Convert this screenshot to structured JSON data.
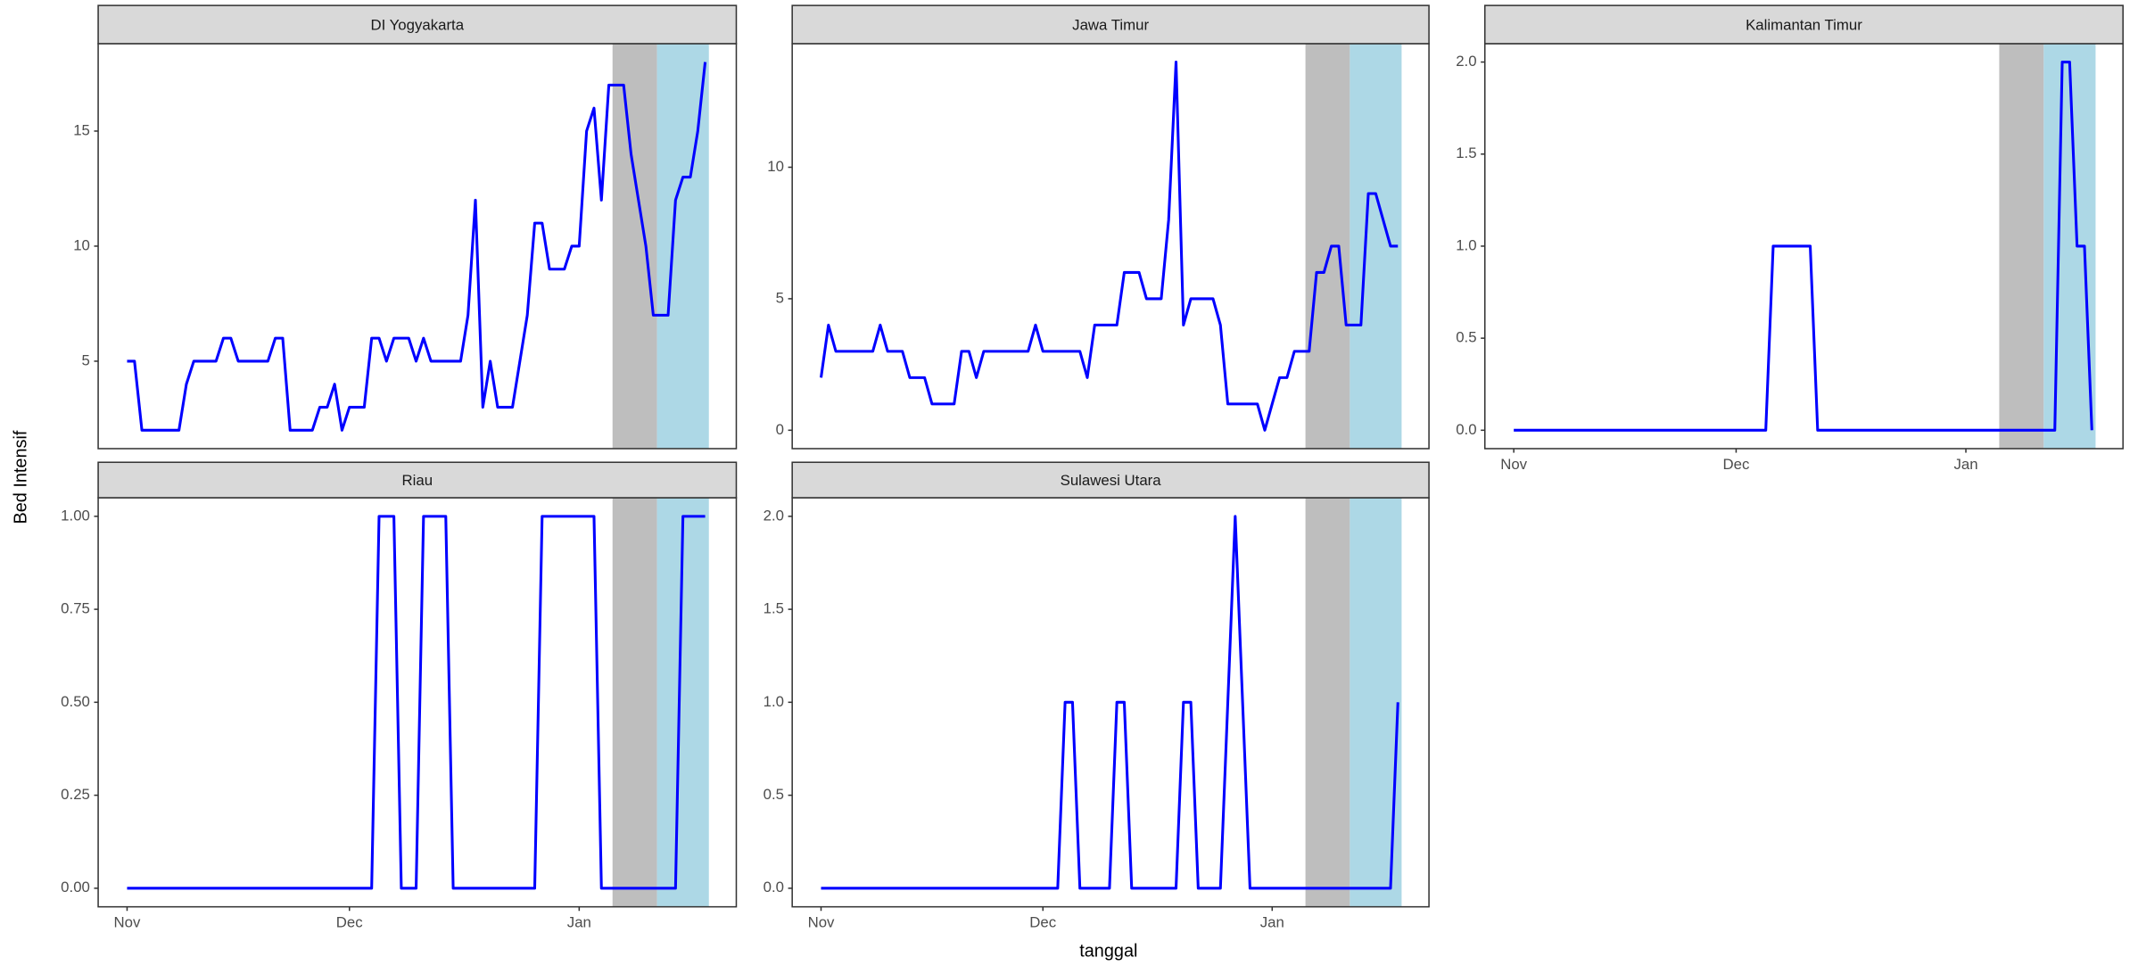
{
  "chart_data": {
    "type": "line",
    "xlabel": "tanggal",
    "ylabel": "Bed Intensif",
    "color": "#0000ff",
    "grid": false,
    "x": [
      0,
      1,
      2,
      3,
      4,
      5,
      6,
      7,
      8,
      9,
      10,
      11,
      12,
      13,
      14,
      15,
      16,
      17,
      18,
      19,
      20,
      21,
      22,
      23,
      24,
      25,
      26,
      27,
      28,
      29,
      30,
      31,
      32,
      33,
      34,
      35,
      36,
      37,
      38,
      39,
      40,
      41,
      42,
      43,
      44,
      45,
      46,
      47,
      48,
      49,
      50,
      51,
      52,
      53,
      54,
      55,
      56,
      57,
      58,
      59,
      60,
      61,
      62,
      63,
      64,
      65,
      66,
      67,
      68,
      69,
      70,
      71,
      72,
      73,
      74,
      75,
      76,
      77,
      78
    ],
    "xlim": [
      -3.9,
      82.2
    ],
    "xticks": [
      {
        "value": 0,
        "label": "Nov"
      },
      {
        "value": 30,
        "label": "Dec"
      },
      {
        "value": 61,
        "label": "Jan"
      }
    ],
    "bands": [
      {
        "xmin": 65.5,
        "xmax": 71.5,
        "color": "#bebebe"
      },
      {
        "xmin": 71.5,
        "xmax": 78.5,
        "color": "#add8e6"
      }
    ],
    "facets": [
      {
        "title": "DI Yogyakarta",
        "ylim": [
          1.2,
          18.8
        ],
        "yticks": [
          5,
          10,
          15
        ],
        "values": [
          5,
          5,
          2,
          2,
          2,
          2,
          2,
          2,
          4,
          5,
          5,
          5,
          5,
          6,
          6,
          5,
          5,
          5,
          5,
          5,
          6,
          6,
          2,
          2,
          2,
          2,
          3,
          3,
          4,
          2,
          3,
          3,
          3,
          6,
          6,
          5,
          6,
          6,
          6,
          5,
          6,
          5,
          5,
          5,
          5,
          5,
          7,
          12,
          3,
          5,
          3,
          3,
          3,
          5,
          7,
          11,
          11,
          9,
          9,
          9,
          10,
          10,
          15,
          16,
          12,
          17,
          17,
          17,
          14,
          12,
          10,
          7,
          7,
          7,
          12,
          13,
          13,
          15,
          18
        ]
      },
      {
        "title": "Jawa Timur",
        "ylim": [
          -0.7,
          14.7
        ],
        "yticks": [
          0,
          5,
          10
        ],
        "values": [
          2,
          4,
          3,
          3,
          3,
          3,
          3,
          3,
          4,
          3,
          3,
          3,
          2,
          2,
          2,
          1,
          1,
          1,
          1,
          3,
          3,
          2,
          3,
          3,
          3,
          3,
          3,
          3,
          3,
          4,
          3,
          3,
          3,
          3,
          3,
          3,
          2,
          4,
          4,
          4,
          4,
          6,
          6,
          6,
          5,
          5,
          5,
          8,
          14,
          4,
          5,
          5,
          5,
          5,
          4,
          1,
          1,
          1,
          1,
          1,
          0,
          1,
          2,
          2,
          3,
          3,
          3,
          6,
          6,
          7,
          7,
          4,
          4,
          4,
          9,
          9,
          8,
          7,
          7
        ]
      },
      {
        "title": "Kalimantan Timur",
        "ylim": [
          -0.1,
          2.1
        ],
        "yticks": [
          {
            "value": 0,
            "label": "0.0"
          },
          {
            "value": 0.5,
            "label": "0.5"
          },
          {
            "value": 1,
            "label": "1.0"
          },
          {
            "value": 1.5,
            "label": "1.5"
          },
          {
            "value": 2,
            "label": "2.0"
          }
        ],
        "values": [
          0,
          0,
          0,
          0,
          0,
          0,
          0,
          0,
          0,
          0,
          0,
          0,
          0,
          0,
          0,
          0,
          0,
          0,
          0,
          0,
          0,
          0,
          0,
          0,
          0,
          0,
          0,
          0,
          0,
          0,
          0,
          0,
          0,
          0,
          0,
          1,
          1,
          1,
          1,
          1,
          1,
          0,
          0,
          0,
          0,
          0,
          0,
          0,
          0,
          0,
          0,
          0,
          0,
          0,
          0,
          0,
          0,
          0,
          0,
          0,
          0,
          0,
          0,
          0,
          0,
          0,
          0,
          0,
          0,
          0,
          0,
          0,
          0,
          0,
          2,
          2,
          1,
          1,
          0
        ]
      },
      {
        "title": "Riau",
        "ylim": [
          -0.05,
          1.05
        ],
        "yticks": [
          {
            "value": 0,
            "label": "0.00"
          },
          {
            "value": 0.25,
            "label": "0.25"
          },
          {
            "value": 0.5,
            "label": "0.50"
          },
          {
            "value": 0.75,
            "label": "0.75"
          },
          {
            "value": 1,
            "label": "1.00"
          }
        ],
        "values": [
          0,
          0,
          0,
          0,
          0,
          0,
          0,
          0,
          0,
          0,
          0,
          0,
          0,
          0,
          0,
          0,
          0,
          0,
          0,
          0,
          0,
          0,
          0,
          0,
          0,
          0,
          0,
          0,
          0,
          0,
          0,
          0,
          0,
          0,
          1,
          1,
          1,
          0,
          0,
          0,
          1,
          1,
          1,
          1,
          0,
          0,
          0,
          0,
          0,
          0,
          0,
          0,
          0,
          0,
          0,
          0,
          1,
          1,
          1,
          1,
          1,
          1,
          1,
          1,
          0,
          0,
          0,
          0,
          0,
          0,
          0,
          0,
          0,
          0,
          0,
          1,
          1,
          1,
          1
        ]
      },
      {
        "title": "Sulawesi Utara",
        "ylim": [
          -0.1,
          2.1
        ],
        "yticks": [
          {
            "value": 0,
            "label": "0.0"
          },
          {
            "value": 0.5,
            "label": "0.5"
          },
          {
            "value": 1,
            "label": "1.0"
          },
          {
            "value": 1.5,
            "label": "1.5"
          },
          {
            "value": 2,
            "label": "2.0"
          }
        ],
        "values": [
          0,
          0,
          0,
          0,
          0,
          0,
          0,
          0,
          0,
          0,
          0,
          0,
          0,
          0,
          0,
          0,
          0,
          0,
          0,
          0,
          0,
          0,
          0,
          0,
          0,
          0,
          0,
          0,
          0,
          0,
          0,
          0,
          0,
          1,
          1,
          0,
          0,
          0,
          0,
          0,
          1,
          1,
          0,
          0,
          0,
          0,
          0,
          0,
          0,
          1,
          1,
          0,
          0,
          0,
          0,
          1,
          2,
          1,
          0,
          0,
          0,
          0,
          0,
          0,
          0,
          0,
          0,
          0,
          0,
          0,
          0,
          0,
          0,
          0,
          0,
          0,
          0,
          0,
          1
        ]
      }
    ]
  }
}
